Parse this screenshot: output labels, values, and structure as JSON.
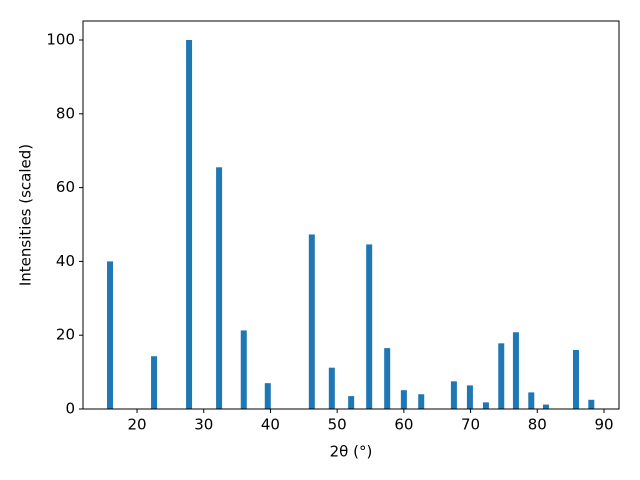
{
  "chart_data": {
    "type": "bar",
    "x_label": "2θ (°)",
    "y_label": "Intensities (scaled)",
    "x": [
      15.95,
      22.55,
      27.8,
      32.3,
      36.0,
      39.6,
      46.2,
      49.2,
      52.1,
      54.8,
      57.5,
      60.0,
      62.6,
      67.5,
      69.9,
      72.3,
      74.6,
      76.8,
      79.1,
      81.3,
      85.8,
      88.1
    ],
    "values": [
      40,
      14.3,
      100,
      65.5,
      21.3,
      7,
      47.3,
      11.2,
      3.5,
      44.6,
      16.5,
      5.1,
      4.0,
      7.5,
      6.4,
      1.8,
      17.8,
      20.8,
      4.5,
      1.2,
      16,
      2.5
    ],
    "color": "#1f77b4",
    "xlim": [
      11.9,
      92.25
    ],
    "xticks": [
      20,
      30,
      40,
      50,
      60,
      70,
      80,
      90
    ],
    "ylim": [
      0,
      105.15
    ],
    "yticks": [
      0,
      20,
      40,
      60,
      80,
      100
    ],
    "grid": false
  }
}
